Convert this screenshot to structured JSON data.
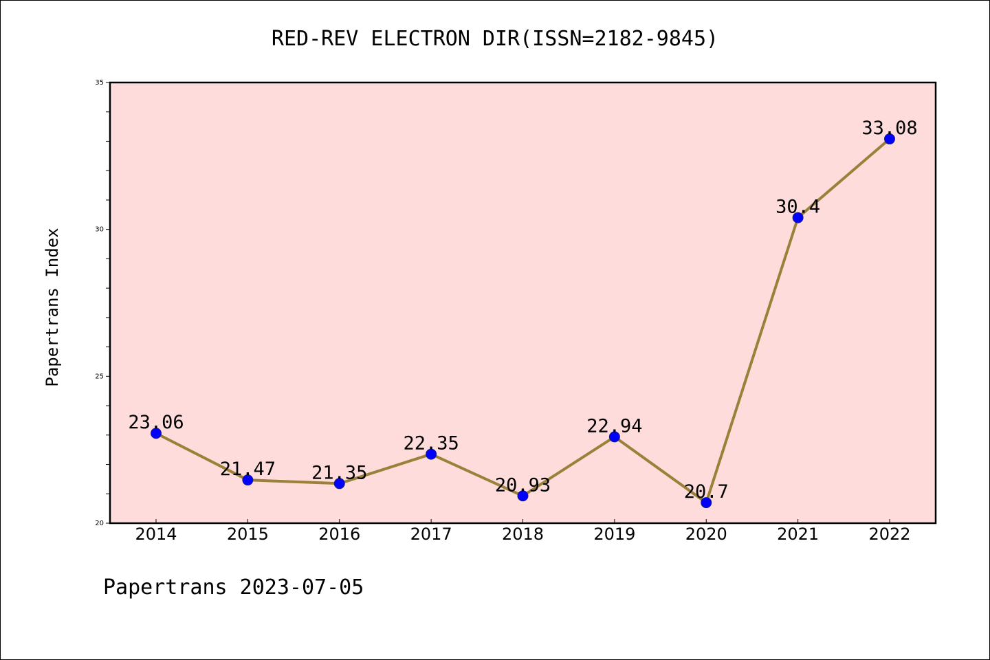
{
  "footer_text": "Papertrans 2023-07-05",
  "colors": {
    "plot_background": "#fedcdc",
    "line": "#9a8039",
    "marker_fill": "#0000ff",
    "marker_stroke": "#1a1a8a"
  },
  "chart_data": {
    "type": "line",
    "title": "RED-REV ELECTRON DIR(ISSN=2182-9845)",
    "xlabel": "",
    "ylabel": "Papertrans Index",
    "categories": [
      "2014",
      "2015",
      "2016",
      "2017",
      "2018",
      "2019",
      "2020",
      "2021",
      "2022"
    ],
    "values": [
      23.06,
      21.47,
      21.35,
      22.35,
      20.93,
      22.94,
      20.7,
      30.4,
      33.08
    ],
    "data_labels": [
      "23.06",
      "21.47",
      "21.35",
      "22.35",
      "20.93",
      "22.94",
      "20.7",
      "30.4",
      "33.08"
    ],
    "ylim": [
      20,
      35
    ],
    "yticks_major": [
      20,
      25,
      30,
      35
    ],
    "ytick_labels": [
      "20",
      "25",
      "30",
      "35"
    ],
    "yticks_minor_step": 1,
    "grid": false,
    "legend": "none"
  }
}
